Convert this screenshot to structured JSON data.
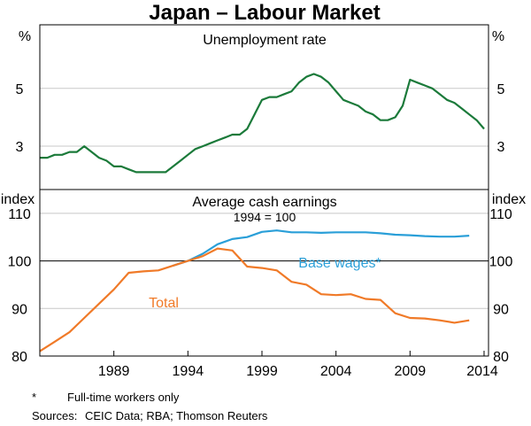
{
  "title": "Japan – Labour Market",
  "chart_data": [
    {
      "type": "line",
      "title": "Unemployment rate",
      "ylabel_left": "%",
      "ylabel_right": "%",
      "ylim": [
        1.5,
        7.2
      ],
      "yticks": [
        3,
        5
      ],
      "xlim": [
        1984.0,
        2014.3
      ],
      "series": [
        {
          "color": "#1b7a3a",
          "x": [
            1984.0,
            1984.5,
            1985.0,
            1985.5,
            1986.0,
            1986.5,
            1987.0,
            1987.5,
            1988.0,
            1988.5,
            1989.0,
            1989.5,
            1990.0,
            1990.5,
            1991.0,
            1991.5,
            1992.0,
            1992.5,
            1993.0,
            1993.5,
            1994.0,
            1994.5,
            1995.0,
            1995.5,
            1996.0,
            1996.5,
            1997.0,
            1997.5,
            1998.0,
            1998.5,
            1999.0,
            1999.5,
            2000.0,
            2000.5,
            2001.0,
            2001.5,
            2002.0,
            2002.5,
            2003.0,
            2003.5,
            2004.0,
            2004.5,
            2005.0,
            2005.5,
            2006.0,
            2006.5,
            2007.0,
            2007.5,
            2008.0,
            2008.5,
            2009.0,
            2009.5,
            2010.0,
            2010.5,
            2011.0,
            2011.5,
            2012.0,
            2012.5,
            2013.0,
            2013.5,
            2014.0
          ],
          "y": [
            2.6,
            2.6,
            2.7,
            2.7,
            2.8,
            2.8,
            3.0,
            2.8,
            2.6,
            2.5,
            2.3,
            2.3,
            2.2,
            2.1,
            2.1,
            2.1,
            2.1,
            2.1,
            2.3,
            2.5,
            2.7,
            2.9,
            3.0,
            3.1,
            3.2,
            3.3,
            3.4,
            3.4,
            3.6,
            4.1,
            4.6,
            4.7,
            4.7,
            4.8,
            4.9,
            5.2,
            5.4,
            5.5,
            5.4,
            5.2,
            4.9,
            4.6,
            4.5,
            4.4,
            4.2,
            4.1,
            3.9,
            3.9,
            4.0,
            4.4,
            5.3,
            5.2,
            5.1,
            5.0,
            4.8,
            4.6,
            4.5,
            4.3,
            4.1,
            3.9,
            3.6
          ]
        }
      ]
    },
    {
      "type": "line",
      "title": "Average cash earnings",
      "subtitle": "1994 = 100",
      "ylabel_left": "index",
      "ylabel_right": "index",
      "ylim": [
        80,
        115
      ],
      "yticks": [
        80,
        90,
        100,
        110
      ],
      "xlim": [
        1984.0,
        2014.3
      ],
      "xticks": [
        1989,
        1994,
        1999,
        2004,
        2009,
        2014
      ],
      "series": [
        {
          "name": "Base wages*",
          "color": "#2a9fd8",
          "x": [
            1993,
            1994,
            1995,
            1996,
            1997,
            1998,
            1999,
            2000,
            2001,
            2002,
            2003,
            2004,
            2005,
            2006,
            2007,
            2008,
            2009,
            2010,
            2011,
            2012,
            2013
          ],
          "y": [
            99.0,
            100.0,
            101.5,
            103.5,
            104.6,
            105.0,
            106.1,
            106.4,
            106.0,
            106.0,
            105.9,
            106.0,
            106.0,
            106.0,
            105.8,
            105.5,
            105.4,
            105.2,
            105.1,
            105.1,
            105.3
          ]
        },
        {
          "name": "Total",
          "color": "#f07a28",
          "x": [
            1984,
            1985,
            1986,
            1987,
            1988,
            1989,
            1990,
            1991,
            1992,
            1993,
            1994,
            1995,
            1996,
            1997,
            1998,
            1999,
            2000,
            2001,
            2002,
            2003,
            2004,
            2005,
            2006,
            2007,
            2008,
            2009,
            2010,
            2011,
            2012,
            2013
          ],
          "y": [
            81.0,
            83.0,
            85.0,
            88.0,
            91.0,
            94.0,
            97.5,
            97.8,
            98.0,
            99.0,
            100.0,
            101.0,
            102.6,
            102.2,
            98.8,
            98.5,
            98.0,
            95.6,
            95.0,
            93.0,
            92.8,
            93.0,
            92.0,
            91.8,
            89.0,
            88.0,
            87.9,
            87.5,
            87.0,
            87.5
          ]
        }
      ]
    }
  ],
  "footnote": {
    "marker": "*",
    "text": "Full-time workers only",
    "sources_label": "Sources:",
    "sources": "CEIC Data; RBA; Thomson Reuters"
  }
}
